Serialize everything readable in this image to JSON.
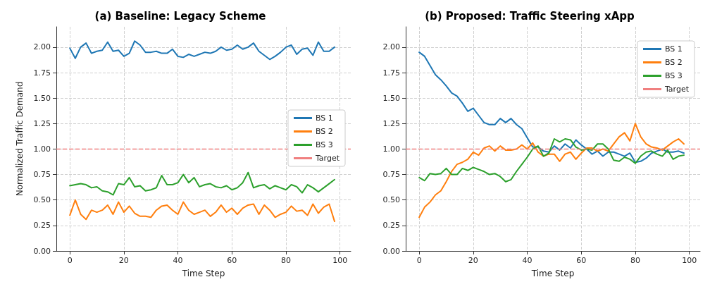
{
  "chart_data": [
    {
      "type": "line",
      "title": "(a) Baseline: Legacy Scheme",
      "xlabel": "Time Step",
      "ylabel": "Normalized Traffic Demand",
      "x": [
        0,
        2,
        4,
        6,
        8,
        10,
        12,
        14,
        16,
        18,
        20,
        22,
        24,
        26,
        28,
        30,
        32,
        34,
        36,
        38,
        40,
        42,
        44,
        46,
        48,
        50,
        52,
        54,
        56,
        58,
        60,
        62,
        64,
        66,
        68,
        70,
        72,
        74,
        76,
        78,
        80,
        82,
        84,
        86,
        88,
        90,
        92,
        94,
        96,
        98
      ],
      "series": [
        {
          "name": "BS 1",
          "color": "#1f77b4",
          "values": [
            1.99,
            1.89,
            2.0,
            2.04,
            1.94,
            1.96,
            1.97,
            2.05,
            1.96,
            1.97,
            1.91,
            1.94,
            2.06,
            2.02,
            1.95,
            1.95,
            1.96,
            1.94,
            1.94,
            1.98,
            1.91,
            1.9,
            1.93,
            1.91,
            1.93,
            1.95,
            1.94,
            1.96,
            2.0,
            1.97,
            1.98,
            2.02,
            1.98,
            2.0,
            2.04,
            1.96,
            1.92,
            1.88,
            1.91,
            1.95,
            2.0,
            2.02,
            1.93,
            1.98,
            1.99,
            1.92,
            2.05,
            1.96,
            1.96,
            2.0
          ]
        },
        {
          "name": "BS 2",
          "color": "#ff7f0e",
          "values": [
            0.35,
            0.5,
            0.36,
            0.31,
            0.4,
            0.38,
            0.4,
            0.45,
            0.36,
            0.48,
            0.38,
            0.44,
            0.37,
            0.34,
            0.34,
            0.33,
            0.4,
            0.44,
            0.45,
            0.4,
            0.36,
            0.48,
            0.4,
            0.36,
            0.38,
            0.4,
            0.34,
            0.38,
            0.45,
            0.38,
            0.42,
            0.36,
            0.42,
            0.45,
            0.46,
            0.36,
            0.45,
            0.4,
            0.33,
            0.36,
            0.38,
            0.44,
            0.39,
            0.4,
            0.35,
            0.46,
            0.37,
            0.43,
            0.46,
            0.29
          ]
        },
        {
          "name": "BS 3",
          "color": "#2ca02c",
          "values": [
            0.64,
            0.65,
            0.66,
            0.65,
            0.62,
            0.63,
            0.59,
            0.58,
            0.55,
            0.66,
            0.65,
            0.72,
            0.63,
            0.64,
            0.59,
            0.6,
            0.62,
            0.74,
            0.65,
            0.65,
            0.67,
            0.75,
            0.67,
            0.72,
            0.63,
            0.65,
            0.66,
            0.63,
            0.62,
            0.64,
            0.6,
            0.62,
            0.67,
            0.77,
            0.62,
            0.64,
            0.65,
            0.61,
            0.64,
            0.62,
            0.6,
            0.65,
            0.63,
            0.57,
            0.65,
            0.62,
            0.58,
            0.62,
            0.66,
            0.7
          ]
        }
      ],
      "ref_lines": [
        {
          "axis": "y",
          "value": 1,
          "label": "Target",
          "color": "#f08080",
          "line_style": "dashed"
        }
      ],
      "xlim": [
        -5,
        104
      ],
      "ylim": [
        0,
        2.2
      ],
      "xticks": [
        0,
        20,
        40,
        60,
        80,
        100
      ],
      "yticks": [
        {
          "value": 0,
          "label": "0.00"
        },
        {
          "value": 0.25,
          "label": "0.25"
        },
        {
          "value": 0.5,
          "label": "0.50"
        },
        {
          "value": 0.75,
          "label": "0.75"
        },
        {
          "value": 1,
          "label": "1.00"
        },
        {
          "value": 1.25,
          "label": "1.25"
        },
        {
          "value": 1.5,
          "label": "1.50"
        },
        {
          "value": 1.75,
          "label": "1.75"
        },
        {
          "value": 2,
          "label": "2.00"
        }
      ],
      "grid": true,
      "legend": "right",
      "line_style": "solid",
      "marker": "none"
    },
    {
      "type": "line",
      "title": "(b) Proposed: Traffic Steering xApp",
      "xlabel": "Time Step",
      "x": [
        0,
        2,
        4,
        6,
        8,
        10,
        12,
        14,
        16,
        18,
        20,
        22,
        24,
        26,
        28,
        30,
        32,
        34,
        36,
        38,
        40,
        42,
        44,
        46,
        48,
        50,
        52,
        54,
        56,
        58,
        60,
        62,
        64,
        66,
        68,
        70,
        72,
        74,
        76,
        78,
        80,
        82,
        84,
        86,
        88,
        90,
        92,
        94,
        96,
        98
      ],
      "series": [
        {
          "name": "BS 1",
          "color": "#1f77b4",
          "values": [
            1.95,
            1.91,
            1.82,
            1.73,
            1.68,
            1.62,
            1.55,
            1.52,
            1.45,
            1.37,
            1.4,
            1.33,
            1.26,
            1.24,
            1.24,
            1.3,
            1.26,
            1.3,
            1.24,
            1.2,
            1.11,
            1.02,
            1.02,
            0.98,
            0.97,
            1.03,
            0.99,
            1.05,
            1.01,
            1.09,
            1.04,
            1.0,
            0.95,
            0.98,
            0.93,
            0.97,
            0.97,
            0.95,
            0.93,
            0.96,
            0.87,
            0.88,
            0.91,
            0.96,
            0.98,
            1.0,
            0.97,
            0.97,
            0.98,
            0.96
          ]
        },
        {
          "name": "BS 2",
          "color": "#ff7f0e",
          "values": [
            0.33,
            0.43,
            0.48,
            0.55,
            0.59,
            0.68,
            0.78,
            0.85,
            0.87,
            0.9,
            0.97,
            0.94,
            1.01,
            1.03,
            0.98,
            1.03,
            0.99,
            0.99,
            1.0,
            1.04,
            1.0,
            1.06,
            0.97,
            0.93,
            0.95,
            0.95,
            0.88,
            0.95,
            0.97,
            0.9,
            0.96,
            1.01,
            1.01,
            0.98,
            1.0,
            0.98,
            1.05,
            1.12,
            1.16,
            1.08,
            1.25,
            1.12,
            1.05,
            1.02,
            1.01,
            0.99,
            1.03,
            1.07,
            1.1,
            1.05
          ]
        },
        {
          "name": "BS 3",
          "color": "#2ca02c",
          "values": [
            0.72,
            0.69,
            0.76,
            0.75,
            0.76,
            0.81,
            0.75,
            0.75,
            0.81,
            0.79,
            0.82,
            0.8,
            0.78,
            0.75,
            0.76,
            0.73,
            0.68,
            0.7,
            0.78,
            0.85,
            0.92,
            1.0,
            1.03,
            0.93,
            0.96,
            1.1,
            1.07,
            1.1,
            1.09,
            1.02,
            0.99,
            1.0,
            0.99,
            1.05,
            1.05,
            1.0,
            0.89,
            0.88,
            0.92,
            0.9,
            0.86,
            0.93,
            0.97,
            0.98,
            0.95,
            0.93,
            0.99,
            0.9,
            0.93,
            0.94
          ]
        }
      ],
      "ref_lines": [
        {
          "axis": "y",
          "value": 1,
          "label": "Target",
          "color": "#f08080",
          "line_style": "dashed"
        }
      ],
      "xlim": [
        -5,
        104
      ],
      "ylim": [
        0,
        2.2
      ],
      "xticks": [
        0,
        20,
        40,
        60,
        80,
        100
      ],
      "yticks": [
        {
          "value": 0,
          "label": "0.00"
        },
        {
          "value": 0.25,
          "label": "0.25"
        },
        {
          "value": 0.5,
          "label": "0.50"
        },
        {
          "value": 0.75,
          "label": "0.75"
        },
        {
          "value": 1,
          "label": "1.00"
        },
        {
          "value": 1.25,
          "label": "1.25"
        },
        {
          "value": 1.5,
          "label": "1.50"
        },
        {
          "value": 1.75,
          "label": "1.75"
        },
        {
          "value": 2,
          "label": "2.00"
        }
      ],
      "grid": true,
      "legend": "top right",
      "line_style": "solid",
      "marker": "none"
    }
  ]
}
